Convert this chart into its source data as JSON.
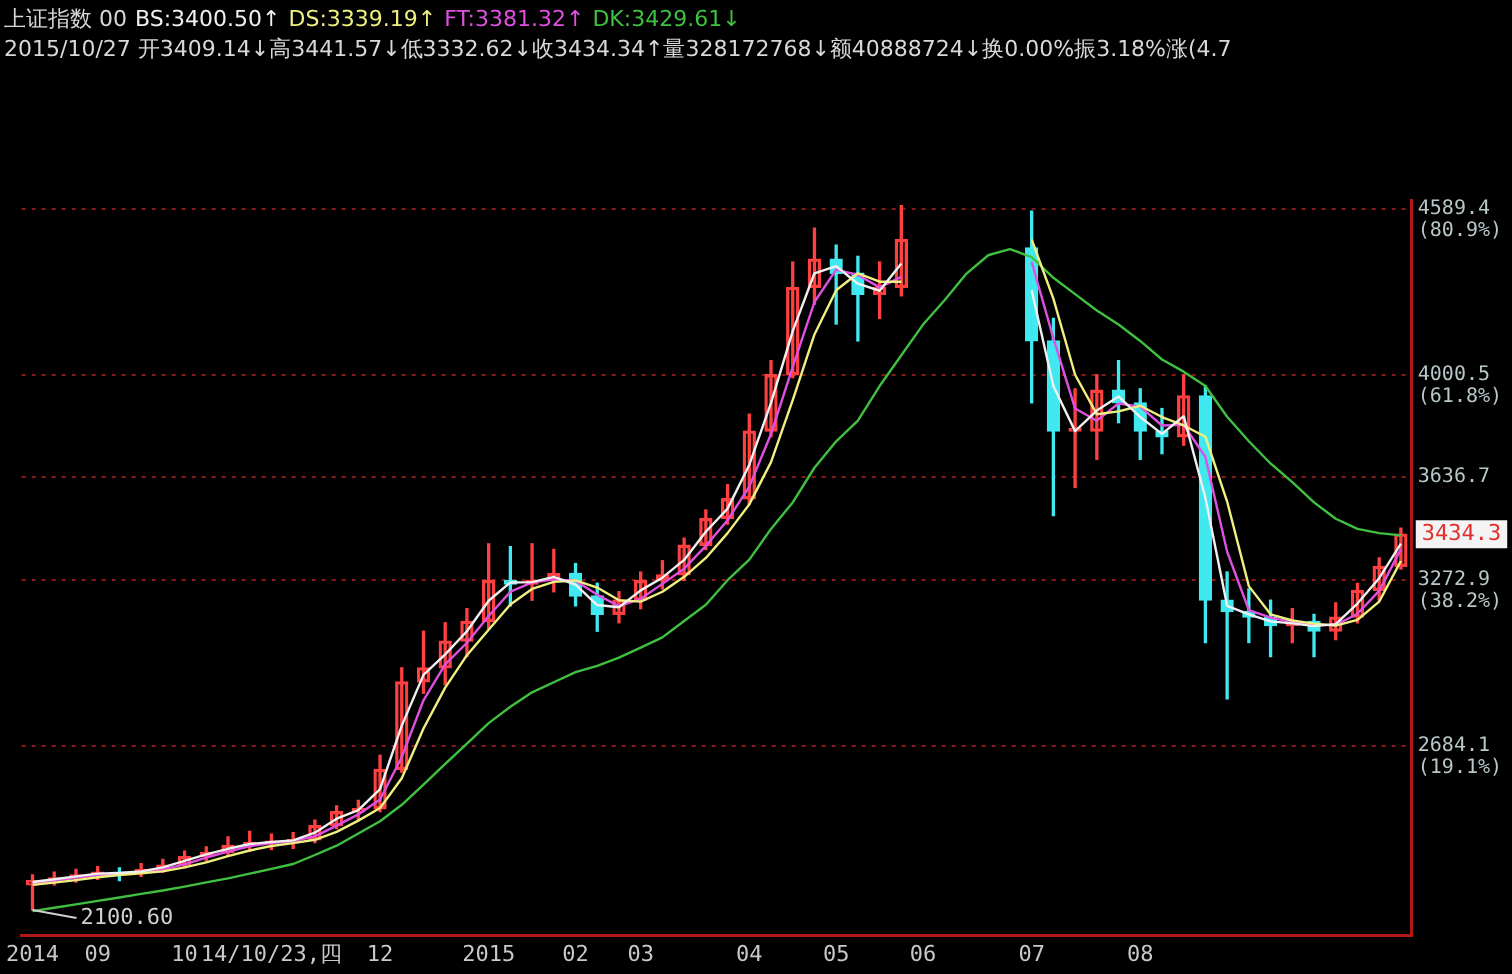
{
  "chart_data": {
    "type": "candlestick",
    "title": "上证指数 00",
    "subtitle": "2015/10/27 开3409.14↓高3441.57↓低3332.62↓收3434.34↑量328172768↓额40888724↓换0.00%振3.18%涨(4.7",
    "categories": [
      "2014",
      null,
      null,
      "09",
      null,
      null,
      null,
      "10",
      null,
      null,
      null,
      "14/10/23,四",
      null,
      null,
      null,
      null,
      "12",
      null,
      null,
      null,
      null,
      "2015",
      null,
      null,
      null,
      "02",
      null,
      null,
      "03",
      null,
      null,
      null,
      null,
      "04",
      null,
      null,
      null,
      "05",
      null,
      null,
      null,
      "06",
      null,
      null,
      null,
      null,
      "07",
      null,
      null,
      null,
      null,
      "08",
      null,
      null,
      null,
      null,
      null,
      null,
      null,
      null,
      null,
      null,
      null,
      null
    ],
    "ohlc": [
      [
        2190,
        2225,
        2100.6,
        2205
      ],
      [
        2205,
        2235,
        2190,
        2215
      ],
      [
        2215,
        2245,
        2200,
        2225
      ],
      [
        2225,
        2255,
        2210,
        2235
      ],
      [
        2235,
        2250,
        2205,
        2230
      ],
      [
        2230,
        2265,
        2220,
        2245
      ],
      [
        2245,
        2280,
        2235,
        2260
      ],
      [
        2260,
        2310,
        2250,
        2290
      ],
      [
        2290,
        2325,
        2275,
        2305
      ],
      [
        2305,
        2360,
        2295,
        2330
      ],
      [
        2330,
        2380,
        2310,
        2340
      ],
      [
        2340,
        2370,
        2315,
        2345
      ],
      [
        2345,
        2375,
        2320,
        2350
      ],
      [
        2350,
        2420,
        2340,
        2400
      ],
      [
        2400,
        2470,
        2390,
        2450
      ],
      [
        2450,
        2490,
        2420,
        2460
      ],
      [
        2460,
        2650,
        2450,
        2600
      ],
      [
        2600,
        2960,
        2590,
        2910
      ],
      [
        2910,
        3090,
        2870,
        2960
      ],
      [
        2960,
        3120,
        2900,
        3055
      ],
      [
        3055,
        3170,
        3000,
        3125
      ],
      [
        3125,
        3400,
        3100,
        3270
      ],
      [
        3270,
        3390,
        3180,
        3257
      ],
      [
        3257,
        3400,
        3200,
        3270
      ],
      [
        3270,
        3380,
        3230,
        3295
      ],
      [
        3295,
        3330,
        3180,
        3215
      ],
      [
        3215,
        3260,
        3090,
        3150
      ],
      [
        3150,
        3230,
        3120,
        3200
      ],
      [
        3200,
        3300,
        3170,
        3270
      ],
      [
        3270,
        3340,
        3240,
        3290
      ],
      [
        3290,
        3420,
        3270,
        3395
      ],
      [
        3395,
        3520,
        3380,
        3490
      ],
      [
        3490,
        3610,
        3470,
        3560
      ],
      [
        3560,
        3860,
        3540,
        3800
      ],
      [
        3800,
        4050,
        3780,
        4000
      ],
      [
        4000,
        4400,
        3990,
        4310
      ],
      [
        4310,
        4520,
        4250,
        4410
      ],
      [
        4410,
        4460,
        4180,
        4360
      ],
      [
        4360,
        4420,
        4120,
        4285
      ],
      [
        4285,
        4400,
        4200,
        4310
      ],
      [
        4310,
        4600,
        4280,
        4480
      ],
      null,
      null,
      null,
      null,
      null,
      [
        4450,
        4580,
        3900,
        4120
      ],
      [
        4120,
        4200,
        3500,
        3800
      ],
      [
        3800,
        3950,
        3600,
        3810
      ],
      [
        3800,
        4000,
        3700,
        3945
      ],
      [
        3945,
        4050,
        3830,
        3900
      ],
      [
        3900,
        3950,
        3700,
        3800
      ],
      [
        3800,
        3880,
        3720,
        3780
      ],
      [
        3780,
        4000,
        3750,
        3925
      ],
      [
        3925,
        3960,
        3050,
        3200
      ],
      [
        3200,
        3300,
        2850,
        3160
      ],
      [
        3160,
        3240,
        3050,
        3140
      ],
      [
        3140,
        3200,
        3000,
        3110
      ],
      [
        3110,
        3170,
        3050,
        3125
      ],
      [
        3125,
        3150,
        3000,
        3090
      ],
      [
        3090,
        3190,
        3060,
        3140
      ],
      [
        3140,
        3260,
        3120,
        3235
      ],
      [
        3235,
        3350,
        3200,
        3320
      ],
      [
        3320,
        3456,
        3310,
        3434.34
      ]
    ],
    "colors": [
      "#ff4040",
      "#ff4040",
      "#ff4040",
      "#ff4040",
      "#40e8f0",
      "#ff4040",
      "#ff4040",
      "#ff4040",
      "#ff4040",
      "#ff4040",
      "#ff4040",
      "#ff4040",
      "#ff4040",
      "#ff4040",
      "#ff4040",
      "#ff4040",
      "#ff4040",
      "#ff4040",
      "#ff4040",
      "#ff4040",
      "#ff4040",
      "#ff4040",
      "#40e8f0",
      "#ff4040",
      "#ff4040",
      "#40e8f0",
      "#40e8f0",
      "#ff4040",
      "#ff4040",
      "#ff4040",
      "#ff4040",
      "#ff4040",
      "#ff4040",
      "#ff4040",
      "#ff4040",
      "#ff4040",
      "#ff4040",
      "#40e8f0",
      "#40e8f0",
      "#ff4040",
      "#ff4040",
      null,
      null,
      null,
      null,
      null,
      "#40e8f0",
      "#40e8f0",
      "#ff4040",
      "#ff4040",
      "#40e8f0",
      "#40e8f0",
      "#40e8f0",
      "#ff4040",
      "#40e8f0",
      "#40e8f0",
      "#40e8f0",
      "#40e8f0",
      "#ff4040",
      "#40e8f0",
      "#ff4040",
      "#ff4040",
      "#ff4040",
      "#ff4040"
    ],
    "series": [
      {
        "name": "BS:3400.50↑",
        "type": "line",
        "color": "#f0f0f0",
        "values": [
          2200,
          2210,
          2220,
          2230,
          2232,
          2238,
          2252,
          2275,
          2298,
          2318,
          2335,
          2342,
          2348,
          2375,
          2425,
          2455,
          2530,
          2755,
          2935,
          3008,
          3090,
          3198,
          3263,
          3264,
          3283,
          3255,
          3183,
          3175,
          3235,
          3280,
          3343,
          3443,
          3525,
          3680,
          3900,
          4155,
          4360,
          4385,
          4323,
          4298,
          4395,
          null,
          null,
          null,
          null,
          null,
          4300,
          3960,
          3800,
          3873,
          3923,
          3850,
          3790,
          3853,
          3563,
          3180,
          3150,
          3125,
          3118,
          3108,
          3115,
          3188,
          3278,
          3400.5
        ]
      },
      {
        "name": "DS:3339.19↑",
        "type": "line",
        "color": "#f0f080",
        "values": [
          2190,
          2198,
          2207,
          2217,
          2225,
          2231,
          2238,
          2252,
          2270,
          2292,
          2312,
          2328,
          2338,
          2350,
          2378,
          2418,
          2463,
          2568,
          2745,
          2890,
          3005,
          3095,
          3185,
          3240,
          3265,
          3270,
          3245,
          3200,
          3195,
          3230,
          3283,
          3350,
          3438,
          3540,
          3690,
          3910,
          4143,
          4300,
          4360,
          4330,
          4330,
          null,
          null,
          null,
          null,
          null,
          4480,
          4270,
          4000,
          3860,
          3870,
          3890,
          3850,
          3820,
          3780,
          3550,
          3250,
          3150,
          3128,
          3117,
          3110,
          3130,
          3195,
          3339.19
        ]
      },
      {
        "name": "FT:3381.32↑",
        "type": "line",
        "color": "#e050e0",
        "values": [
          2195,
          2205,
          2215,
          2225,
          2231,
          2235,
          2245,
          2263,
          2287,
          2308,
          2327,
          2338,
          2345,
          2362,
          2400,
          2440,
          2493,
          2643,
          2845,
          2972,
          3049,
          3144,
          3230,
          3263,
          3274,
          3269,
          3219,
          3179,
          3205,
          3258,
          3312,
          3393,
          3484,
          3603,
          3790,
          4028,
          4258,
          4373,
          4354,
          4310,
          4347,
          null,
          null,
          null,
          null,
          null,
          4400,
          4130,
          3880,
          3837,
          3898,
          3887,
          3820,
          3822,
          3708,
          3372,
          3165,
          3138,
          3122,
          3113,
          3112,
          3152,
          3233,
          3381.32
        ]
      },
      {
        "name": "DK:3429.61↓",
        "type": "line",
        "color": "#40c040",
        "values": [
          2097,
          2109,
          2121,
          2133,
          2145,
          2158,
          2170,
          2184,
          2199,
          2213,
          2230,
          2247,
          2264,
          2296,
          2329,
          2372,
          2416,
          2474,
          2546,
          2619,
          2691,
          2764,
          2822,
          2873,
          2909,
          2945,
          2967,
          2996,
          3032,
          3068,
          3126,
          3184,
          3271,
          3344,
          3453,
          3547,
          3670,
          3764,
          3837,
          3960,
          4069,
          4178,
          4265,
          4359,
          4424,
          4446,
          4417,
          4344,
          4286,
          4228,
          4178,
          4120,
          4054,
          4011,
          3960,
          3851,
          3764,
          3685,
          3619,
          3547,
          3489,
          3453,
          3438,
          3430
        ]
      }
    ],
    "ylim": [
      2010,
      4620
    ],
    "yticks": [
      2684.1,
      3272.9,
      3636.7,
      4000.5,
      4589.4
    ],
    "y2lim": [
      -2.77,
      81.91
    ],
    "y2ticks": [
      {
        "value": 19.1,
        "label": "(19.1%)"
      },
      {
        "value": 38.2,
        "label": "(38.2%)"
      },
      {
        "value": 61.8,
        "label": "(61.8%)"
      },
      {
        "value": 80.9,
        "label": "(80.9%)"
      }
    ],
    "grid": "y",
    "marker": "none",
    "line_style": "solid",
    "annotations": [
      {
        "text": "2100.60",
        "x": "2014",
        "y": 2100.6
      },
      "3434.3"
    ]
  }
}
